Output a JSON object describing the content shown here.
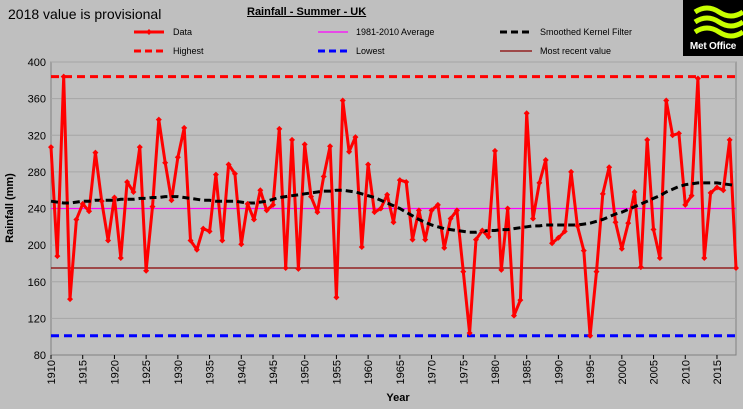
{
  "header": {
    "provisional_note": "2018  value is provisional",
    "logo_text": "Met Office"
  },
  "colors": {
    "background": "#bfbfbf",
    "data": "#ff0000",
    "average": "#ff00ff",
    "smoothed": "#000000",
    "highest": "#ff0000",
    "lowest": "#0000ff",
    "recent": "#8b0000"
  },
  "chart_data": {
    "type": "line",
    "title": "Rainfall - Summer - UK",
    "xlabel": "Year",
    "ylabel": "Rainfall (mm)",
    "xlim": [
      1910,
      2018
    ],
    "ylim": [
      80,
      400
    ],
    "grid": true,
    "xticks": [
      1910,
      1915,
      1920,
      1925,
      1930,
      1935,
      1940,
      1945,
      1950,
      1955,
      1960,
      1965,
      1970,
      1975,
      1980,
      1985,
      1990,
      1995,
      2000,
      2005,
      2010,
      2015
    ],
    "yticks": [
      80,
      120,
      160,
      200,
      240,
      280,
      320,
      360,
      400
    ],
    "legend": [
      "Data",
      "1981-2010 Average",
      "Smoothed Kernel Filter",
      "Highest",
      "Lowest",
      "Most recent value"
    ],
    "x": [
      1910,
      1911,
      1912,
      1913,
      1914,
      1915,
      1916,
      1917,
      1918,
      1919,
      1920,
      1921,
      1922,
      1923,
      1924,
      1925,
      1926,
      1927,
      1928,
      1929,
      1930,
      1931,
      1932,
      1933,
      1934,
      1935,
      1936,
      1937,
      1938,
      1939,
      1940,
      1941,
      1942,
      1943,
      1944,
      1945,
      1946,
      1947,
      1948,
      1949,
      1950,
      1951,
      1952,
      1953,
      1954,
      1955,
      1956,
      1957,
      1958,
      1959,
      1960,
      1961,
      1962,
      1963,
      1964,
      1965,
      1966,
      1967,
      1968,
      1969,
      1970,
      1971,
      1972,
      1973,
      1974,
      1975,
      1976,
      1977,
      1978,
      1979,
      1980,
      1981,
      1982,
      1983,
      1984,
      1985,
      1986,
      1987,
      1988,
      1989,
      1990,
      1991,
      1992,
      1993,
      1994,
      1995,
      1996,
      1997,
      1998,
      1999,
      2000,
      2001,
      2002,
      2003,
      2004,
      2005,
      2006,
      2007,
      2008,
      2009,
      2010,
      2011,
      2012,
      2013,
      2014,
      2015,
      2016,
      2017,
      2018
    ],
    "series": [
      {
        "name": "Data",
        "values": [
          307,
          188,
          384,
          141,
          228,
          245,
          237,
          301,
          248,
          205,
          252,
          186,
          269,
          258,
          307,
          172,
          242,
          337,
          290,
          249,
          296,
          328,
          205,
          195,
          218,
          215,
          277,
          205,
          288,
          278,
          201,
          245,
          228,
          260,
          238,
          244,
          327,
          175,
          315,
          174,
          310,
          253,
          236,
          275,
          308,
          143,
          358,
          302,
          318,
          198,
          288,
          236,
          240,
          255,
          225,
          271,
          269,
          206,
          238,
          206,
          238,
          244,
          197,
          229,
          238,
          171,
          104,
          206,
          216,
          209,
          303,
          173,
          240,
          123,
          140,
          344,
          229,
          268,
          293,
          202,
          208,
          215,
          280,
          221,
          194,
          101,
          171,
          256,
          285,
          225,
          196,
          224,
          258,
          176,
          315,
          217,
          186,
          358,
          320,
          322,
          244,
          254,
          382,
          186,
          257,
          263,
          260,
          315,
          175
        ]
      },
      {
        "name": "Smoothed Kernel Filter",
        "values": [
          248,
          247,
          246,
          246,
          247,
          248,
          248,
          249,
          249,
          249,
          249,
          250,
          250,
          250,
          251,
          251,
          252,
          252,
          253,
          253,
          253,
          252,
          251,
          250,
          249,
          249,
          248,
          248,
          248,
          248,
          247,
          246,
          246,
          247,
          248,
          250,
          252,
          253,
          254,
          255,
          256,
          257,
          258,
          259,
          259,
          260,
          260,
          259,
          258,
          256,
          254,
          252,
          249,
          246,
          243,
          240,
          236,
          232,
          228,
          225,
          222,
          220,
          218,
          217,
          216,
          215,
          214,
          214,
          215,
          216,
          216,
          217,
          217,
          218,
          219,
          220,
          221,
          221,
          222,
          222,
          222,
          222,
          222,
          222,
          223,
          224,
          226,
          228,
          231,
          234,
          236,
          239,
          242,
          245,
          248,
          251,
          254,
          258,
          261,
          264,
          266,
          267,
          268,
          268,
          268,
          268,
          267,
          266,
          265
        ]
      },
      {
        "name": "1981-2010 Average",
        "value": 240
      },
      {
        "name": "Highest",
        "value": 384
      },
      {
        "name": "Lowest",
        "value": 101
      },
      {
        "name": "Most recent value",
        "value": 175
      }
    ]
  }
}
